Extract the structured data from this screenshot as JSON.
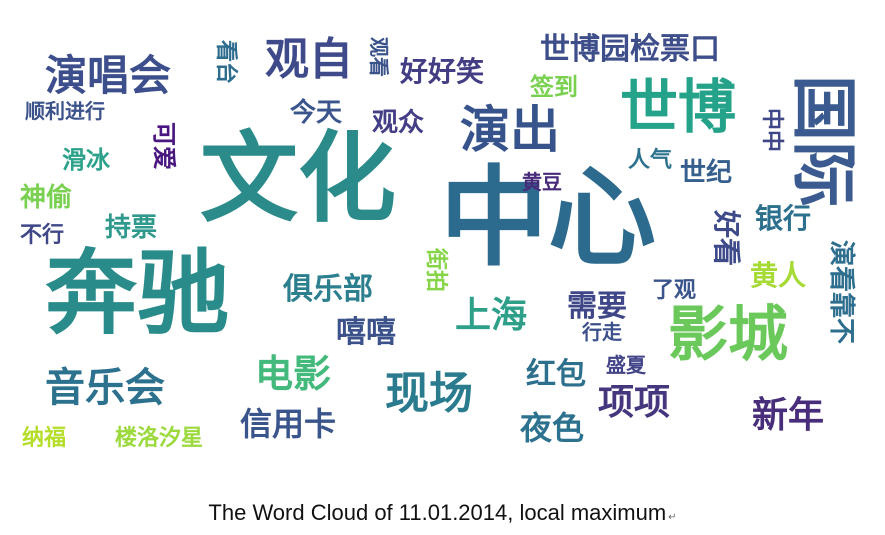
{
  "words": [
    {
      "text": "中心",
      "color": "#2c6a8e"
    },
    {
      "text": "文化",
      "color": "#2b8a8a"
    },
    {
      "text": "奔驰",
      "color": "#2a8c8a"
    },
    {
      "text": "国际",
      "color": "#3b5a8f"
    },
    {
      "text": "影城",
      "color": "#6ac95a"
    },
    {
      "text": "世博",
      "color": "#25a38a"
    },
    {
      "text": "演出",
      "color": "#37538b"
    },
    {
      "text": "观自",
      "color": "#3f4a8a"
    },
    {
      "text": "演唱会",
      "color": "#3c4e8b"
    },
    {
      "text": "现场",
      "color": "#2a7b8e"
    },
    {
      "text": "上海",
      "color": "#2ea08a"
    },
    {
      "text": "电影",
      "color": "#43b97c"
    },
    {
      "text": "音乐会",
      "color": "#2c718e"
    },
    {
      "text": "新年",
      "color": "#472d7a"
    },
    {
      "text": "项项",
      "color": "#46367d"
    },
    {
      "text": "世博园检票口",
      "color": "#3d4e8a"
    },
    {
      "text": "好好笑",
      "color": "#433d84"
    },
    {
      "text": "今天",
      "color": "#3a548c"
    },
    {
      "text": "观众",
      "color": "#433e85"
    },
    {
      "text": "顺利进行",
      "color": "#3b528b"
    },
    {
      "text": "看台",
      "color": "#2f6d8e"
    },
    {
      "text": "观看",
      "color": "#3a538b"
    },
    {
      "text": "签到",
      "color": "#7ad151"
    },
    {
      "text": "滑冰",
      "color": "#2ca28a"
    },
    {
      "text": "可爱",
      "color": "#4a167f"
    },
    {
      "text": "神偷",
      "color": "#7ad151"
    },
    {
      "text": "不行",
      "color": "#3f4788"
    },
    {
      "text": "持票",
      "color": "#2e998c"
    },
    {
      "text": "世纪",
      "color": "#355f8d"
    },
    {
      "text": "人气",
      "color": "#2c728e"
    },
    {
      "text": "中中",
      "color": "#3f4788"
    },
    {
      "text": "黄豆",
      "color": "#472a7a"
    },
    {
      "text": "银行",
      "color": "#2d708e"
    },
    {
      "text": "好看",
      "color": "#3e4a89"
    },
    {
      "text": "黄人",
      "color": "#a6db35"
    },
    {
      "text": "演看靠不",
      "color": "#2e6e8e"
    },
    {
      "text": "俱乐部",
      "color": "#2c7f8e"
    },
    {
      "text": "街拍",
      "color": "#86d549"
    },
    {
      "text": "嘻嘻",
      "color": "#3b528b"
    },
    {
      "text": "需要",
      "color": "#3f4788"
    },
    {
      "text": "了观",
      "color": "#3a548c"
    },
    {
      "text": "行走",
      "color": "#3c508b"
    },
    {
      "text": "红包",
      "color": "#2d708e"
    },
    {
      "text": "盛夏",
      "color": "#414487"
    },
    {
      "text": "信用卡",
      "color": "#3a548c"
    },
    {
      "text": "夜色",
      "color": "#2c718e"
    },
    {
      "text": "纳福",
      "color": "#b5de2b"
    },
    {
      "text": "楼洛汐星",
      "color": "#9bd93c"
    }
  ],
  "caption": {
    "text": "The Word Cloud of 11.01.2014, local maximum",
    "mark": "↵"
  }
}
